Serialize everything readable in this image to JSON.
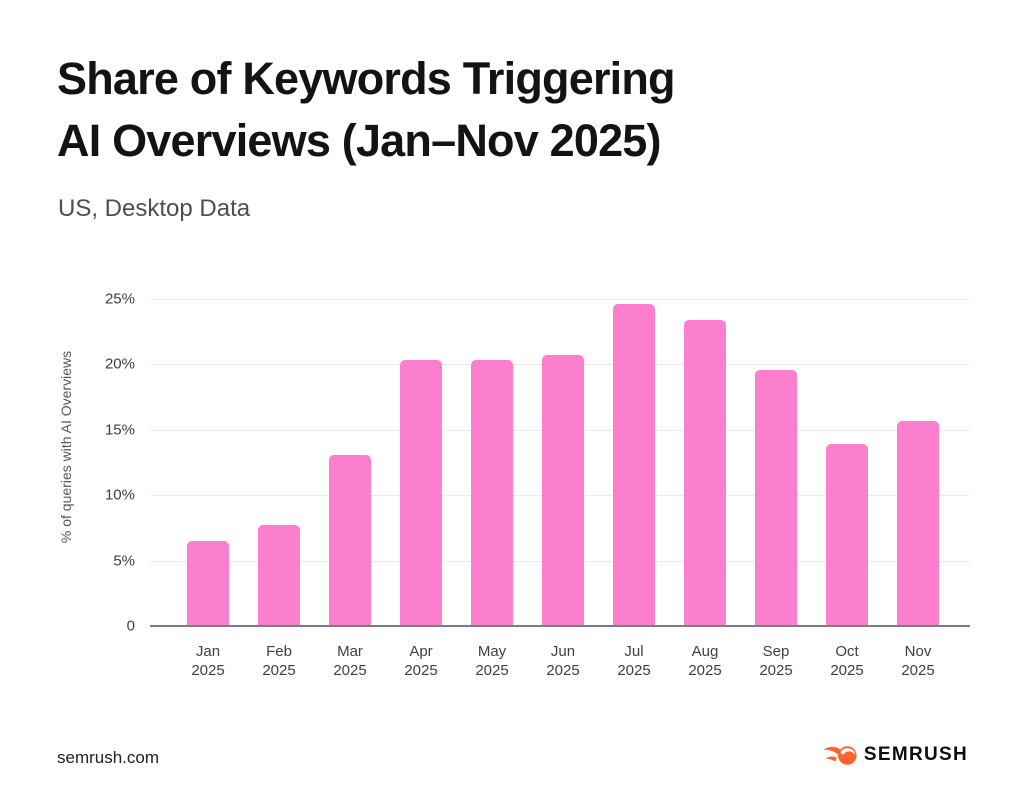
{
  "header": {
    "title_line1": "Share of Keywords Triggering",
    "title_line2": "AI Overviews (Jan–Nov 2025)",
    "subtitle": "US, Desktop Data"
  },
  "chart_data": {
    "type": "bar",
    "title": "Share of Keywords Triggering AI Overviews (Jan–Nov 2025)",
    "subtitle": "US, Desktop Data",
    "categories": [
      {
        "month": "Jan",
        "year": "2025"
      },
      {
        "month": "Feb",
        "year": "2025"
      },
      {
        "month": "Mar",
        "year": "2025"
      },
      {
        "month": "Apr",
        "year": "2025"
      },
      {
        "month": "May",
        "year": "2025"
      },
      {
        "month": "Jun",
        "year": "2025"
      },
      {
        "month": "Jul",
        "year": "2025"
      },
      {
        "month": "Aug",
        "year": "2025"
      },
      {
        "month": "Sep",
        "year": "2025"
      },
      {
        "month": "Oct",
        "year": "2025"
      },
      {
        "month": "Nov",
        "year": "2025"
      }
    ],
    "values": [
      6.5,
      7.7,
      13.1,
      20.3,
      20.3,
      20.7,
      24.6,
      23.4,
      19.6,
      13.9,
      15.7
    ],
    "xlabel": "",
    "ylabel": "% of queries with AI Overviews",
    "ylim": [
      0,
      25
    ],
    "ytick_values": [
      25,
      20,
      15,
      10,
      5,
      0
    ],
    "ytick_labels": [
      "25%",
      "20%",
      "15%",
      "10%",
      "5%",
      "0"
    ],
    "grid": true,
    "legend": false,
    "bar_color": "#fc7ece"
  },
  "footer": {
    "site": "semrush.com",
    "brand": "SEMRUSH",
    "brand_color": "#ff642d"
  }
}
